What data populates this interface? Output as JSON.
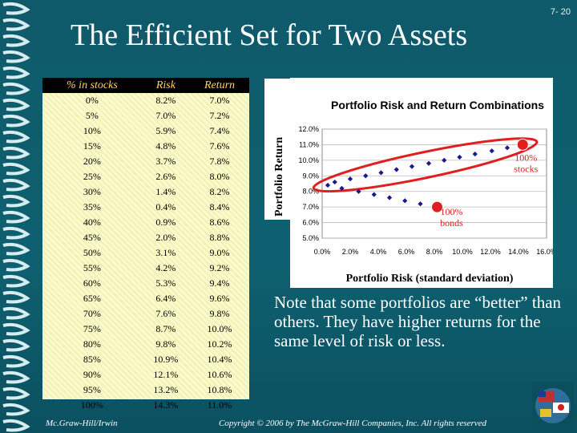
{
  "slide": {
    "number": "7- 20",
    "title": "The Efficient Set for Two Assets",
    "note": "Note that some portfolios are “better” than others. They have higher returns for the same level of risk or less.",
    "footer_left": "Mc.Graw-Hill/Irwin",
    "footer_center": "Copyright © 2006 by The McGraw-Hill Companies, Inc. All rights reserved"
  },
  "table": {
    "headers": [
      "% in stocks",
      "Risk",
      "Return"
    ],
    "rows": [
      [
        "0%",
        "8.2%",
        "7.0%"
      ],
      [
        "5%",
        "7.0%",
        "7.2%"
      ],
      [
        "10%",
        "5.9%",
        "7.4%"
      ],
      [
        "15%",
        "4.8%",
        "7.6%"
      ],
      [
        "20%",
        "3.7%",
        "7.8%"
      ],
      [
        "25%",
        "2.6%",
        "8.0%"
      ],
      [
        "30%",
        "1.4%",
        "8.2%"
      ],
      [
        "35%",
        "0.4%",
        "8.4%"
      ],
      [
        "40%",
        "0.9%",
        "8.6%"
      ],
      [
        "45%",
        "2.0%",
        "8.8%"
      ],
      [
        "50%",
        "3.1%",
        "9.0%"
      ],
      [
        "55%",
        "4.2%",
        "9.2%"
      ],
      [
        "60%",
        "5.3%",
        "9.4%"
      ],
      [
        "65%",
        "6.4%",
        "9.6%"
      ],
      [
        "70%",
        "7.6%",
        "9.8%"
      ],
      [
        "75%",
        "8.7%",
        "10.0%"
      ],
      [
        "80%",
        "9.8%",
        "10.2%"
      ],
      [
        "85%",
        "10.9%",
        "10.4%"
      ],
      [
        "90%",
        "12.1%",
        "10.6%"
      ],
      [
        "95%",
        "13.2%",
        "10.8%"
      ],
      [
        "100%",
        "14.3%",
        "11.0%"
      ]
    ]
  },
  "chart_data": {
    "type": "scatter",
    "title": "Portfolio Risk and Return Combinations",
    "xlabel": "Portfolio Risk (standard deviation)",
    "ylabel": "Portfolio Return",
    "xlim": [
      0,
      16
    ],
    "ylim": [
      5,
      12
    ],
    "x_ticks": [
      "0.0%",
      "2.0%",
      "4.0%",
      "6.0%",
      "8.0%",
      "10.0%",
      "12.0%",
      "14.0%",
      "16.0%"
    ],
    "y_ticks": [
      "5.0%",
      "6.0%",
      "7.0%",
      "8.0%",
      "9.0%",
      "10.0%",
      "11.0%",
      "12.0%"
    ],
    "grid": true,
    "series": [
      {
        "values": [
          {
            "x": 8.2,
            "y": 7.0
          },
          {
            "x": 7.0,
            "y": 7.2
          },
          {
            "x": 5.9,
            "y": 7.4
          },
          {
            "x": 4.8,
            "y": 7.6
          },
          {
            "x": 3.7,
            "y": 7.8
          },
          {
            "x": 2.6,
            "y": 8.0
          },
          {
            "x": 1.4,
            "y": 8.2
          },
          {
            "x": 0.4,
            "y": 8.4
          },
          {
            "x": 0.9,
            "y": 8.6
          },
          {
            "x": 2.0,
            "y": 8.8
          },
          {
            "x": 3.1,
            "y": 9.0
          },
          {
            "x": 4.2,
            "y": 9.2
          },
          {
            "x": 5.3,
            "y": 9.4
          },
          {
            "x": 6.4,
            "y": 9.6
          },
          {
            "x": 7.6,
            "y": 9.8
          },
          {
            "x": 8.7,
            "y": 10.0
          },
          {
            "x": 9.8,
            "y": 10.2
          },
          {
            "x": 10.9,
            "y": 10.4
          },
          {
            "x": 12.1,
            "y": 10.6
          },
          {
            "x": 13.2,
            "y": 10.8
          },
          {
            "x": 14.3,
            "y": 11.0
          }
        ]
      }
    ],
    "highlights": [
      {
        "label": "100% stocks",
        "x": 14.3,
        "y": 11.0
      },
      {
        "label": "100% bonds",
        "x": 8.2,
        "y": 7.0
      }
    ],
    "colors": {
      "points": "#1a1a8c",
      "highlight": "#e02020",
      "ellipse": "#e02020"
    }
  }
}
